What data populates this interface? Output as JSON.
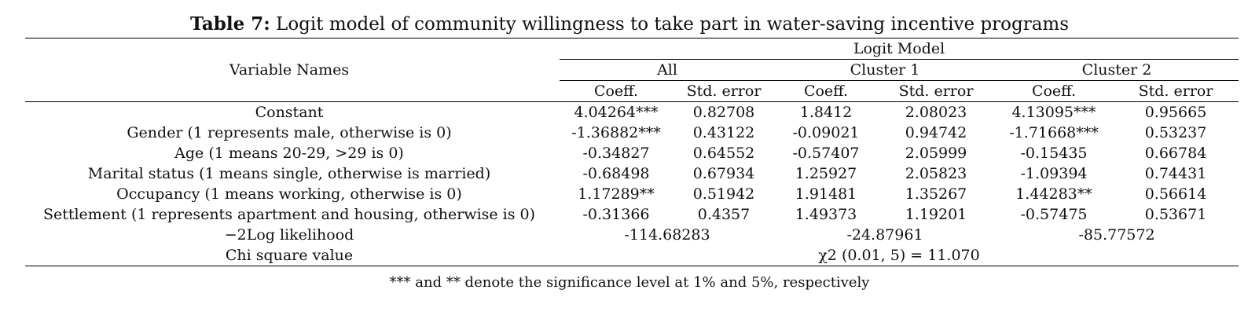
{
  "title": {
    "label": "Table 7:",
    "text": " Logit model of community willingness to take part in water-saving incentive programs"
  },
  "header": {
    "variable_names": "Variable Names",
    "logit_model": "Logit Model",
    "groups": [
      "All",
      "Cluster 1",
      "Cluster 2"
    ],
    "coeff": "Coeff.",
    "std_error": "Std. error"
  },
  "rows": [
    {
      "name": "Constant",
      "values": [
        "4.04264***",
        "0.82708",
        "1.8412",
        "2.08023",
        "4.13095***",
        "0.95665"
      ]
    },
    {
      "name": "Gender (1 represents male, otherwise is 0)",
      "values": [
        "-1.36882***",
        "0.43122",
        "-0.09021",
        "0.94742",
        "-1.71668***",
        "0.53237"
      ]
    },
    {
      "name": "Age (1 means 20-29, >29 is 0)",
      "values": [
        "-0.34827",
        "0.64552",
        "-0.57407",
        "2.05999",
        "-0.15435",
        "0.66784"
      ]
    },
    {
      "name": "Marital status (1 means single, otherwise is married)",
      "values": [
        "-0.68498",
        "0.67934",
        "1.25927",
        "2.05823",
        "-1.09394",
        "0.74431"
      ]
    },
    {
      "name": "Occupancy (1 means working, otherwise is 0)",
      "values": [
        "1.17289**",
        "0.51942",
        "1.91481",
        "1.35267",
        "1.44283**",
        "0.56614"
      ]
    },
    {
      "name": "Settlement (1 represents apartment and housing, otherwise is 0)",
      "values": [
        "-0.31366",
        "0.4357",
        "1.49373",
        "1.19201",
        "-0.57475",
        "0.53671"
      ]
    }
  ],
  "loglik": {
    "name": "−2Log likelihood",
    "values": [
      "-114.68283",
      "-24.87961",
      "-85.77572"
    ]
  },
  "chisq": {
    "name": "Chi square value",
    "value": "χ2 (0.01, 5) = 11.070"
  },
  "note": "*** and ** denote the significance level at 1% and 5%, respectively"
}
